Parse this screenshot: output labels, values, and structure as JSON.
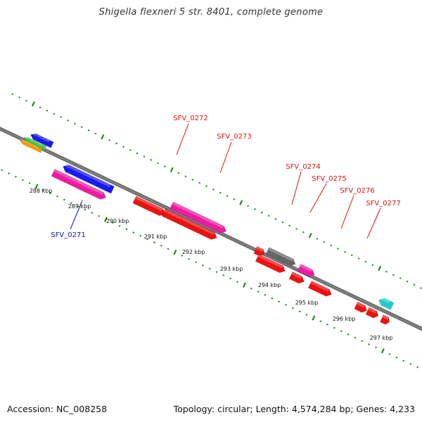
{
  "title": "Shigella flexneri 5 str. 8401, complete genome",
  "footer": {
    "accession": "Accession: NC_008258",
    "summary": "Topology: circular; Length: 4,574,284 bp; Genes: 4,233"
  },
  "colors": {
    "backbone": "#808080",
    "ticks": "#1a8a1a",
    "label_red": "#dd1111",
    "label_blue": "#1111bb"
  },
  "scale_labels": [
    "288 kbp",
    "289 kbp",
    "290 kbp",
    "291 kbp",
    "292 kbp",
    "293 kbp",
    "294 kbp",
    "295 kbp",
    "296 kbp",
    "297 kbp"
  ],
  "gene_labels": [
    {
      "text": "SFV_0271",
      "color": "#1111bb"
    },
    {
      "text": "SFV_0272",
      "color": "#dd1111"
    },
    {
      "text": "SFV_0273",
      "color": "#dd1111"
    },
    {
      "text": "SFV_0274",
      "color": "#dd1111"
    },
    {
      "text": "SFV_0275",
      "color": "#dd1111"
    },
    {
      "text": "SFV_0276",
      "color": "#dd1111"
    },
    {
      "text": "SFV_0277",
      "color": "#dd1111"
    }
  ],
  "features": [
    {
      "color": "#1a1aee",
      "strand": "reverse"
    },
    {
      "color": "#44cc44",
      "strand": "reverse"
    },
    {
      "color": "#ff9900",
      "strand": "reverse"
    },
    {
      "color": "#1a1aee",
      "strand": "reverse"
    },
    {
      "color": "#ee1aa0",
      "strand": "forward"
    },
    {
      "color": "#ee1111",
      "strand": "forward"
    },
    {
      "color": "#ee1aa0",
      "strand": "forward"
    },
    {
      "color": "#ee1111",
      "strand": "forward"
    },
    {
      "color": "#ee1111",
      "strand": "forward"
    },
    {
      "color": "#666666",
      "strand": "forward"
    },
    {
      "color": "#ee1111",
      "strand": "forward"
    },
    {
      "color": "#ee1aa0",
      "strand": "forward"
    },
    {
      "color": "#ee1111",
      "strand": "forward"
    },
    {
      "color": "#ee1111",
      "strand": "forward"
    },
    {
      "color": "#22cccc",
      "strand": "reverse"
    },
    {
      "color": "#ee1111",
      "strand": "forward"
    },
    {
      "color": "#ee1111",
      "strand": "forward"
    },
    {
      "color": "#ee1111",
      "strand": "forward"
    }
  ]
}
